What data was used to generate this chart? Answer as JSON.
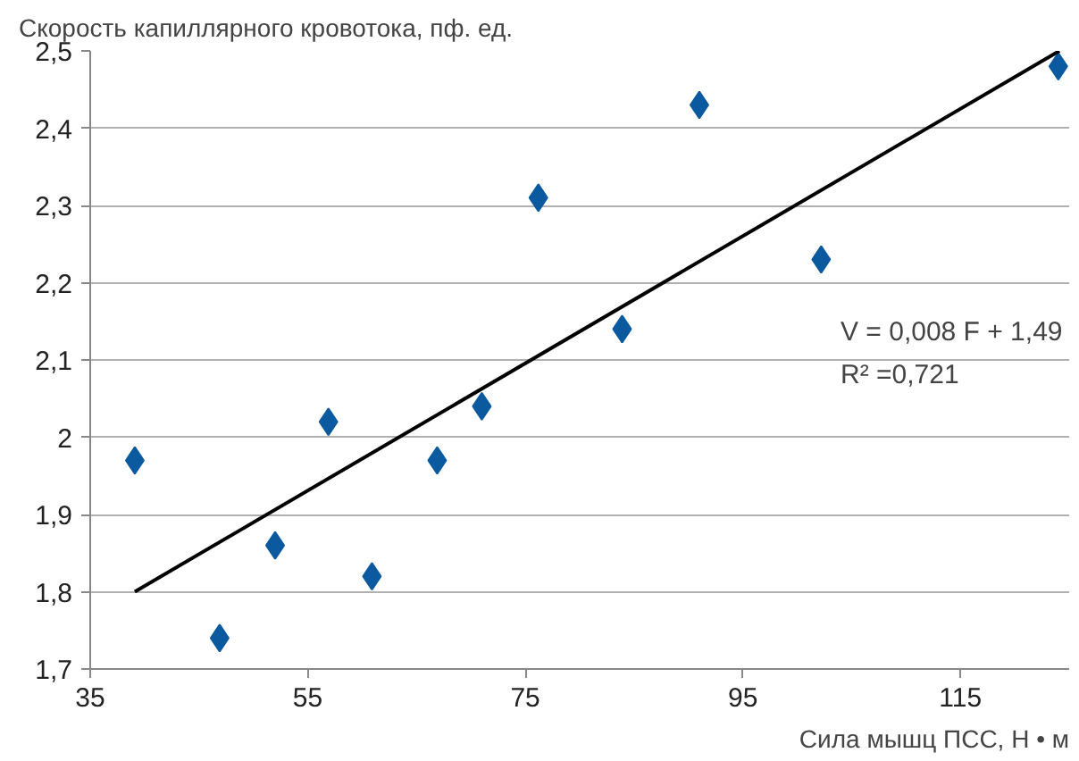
{
  "chart_data": {
    "type": "scatter",
    "ylabel": "Скорость капиллярного кровотока, пф. ед.",
    "xlabel": "Сила мышц ПСС, Н • м",
    "series": [
      {
        "marker": "diamond",
        "color": "#0b5aa0",
        "x": [
          39.1,
          46.9,
          52.0,
          56.9,
          60.9,
          66.9,
          71.0,
          76.2,
          83.9,
          91.0,
          102.2,
          124.0
        ],
        "values": [
          1.97,
          1.74,
          1.86,
          2.02,
          1.82,
          1.97,
          2.04,
          2.31,
          2.14,
          2.43,
          2.23,
          2.48
        ]
      },
      {
        "type": "line",
        "color": "#000000",
        "x": [
          39.1,
          124.1
        ],
        "values": [
          1.8,
          2.5
        ]
      }
    ],
    "annotations": [
      "V = 0,008 F + 1,49",
      "R² =0,721"
    ],
    "xlim": [
      35,
      125
    ],
    "xticks": [
      35,
      55,
      75,
      95,
      115
    ],
    "ylim": [
      1.7,
      2.5
    ],
    "yticks": [
      {
        "value": 1.7,
        "label": "1,7"
      },
      {
        "value": 1.8,
        "label": "1,8"
      },
      {
        "value": 1.9,
        "label": "1,9"
      },
      2,
      {
        "value": 2.1,
        "label": "2,1"
      },
      {
        "value": 2.2,
        "label": "2,2"
      },
      {
        "value": 2.3,
        "label": "2,3"
      },
      {
        "value": 2.4,
        "label": "2,4"
      },
      {
        "value": 2.5,
        "label": "2,5"
      }
    ],
    "grid": "y"
  }
}
